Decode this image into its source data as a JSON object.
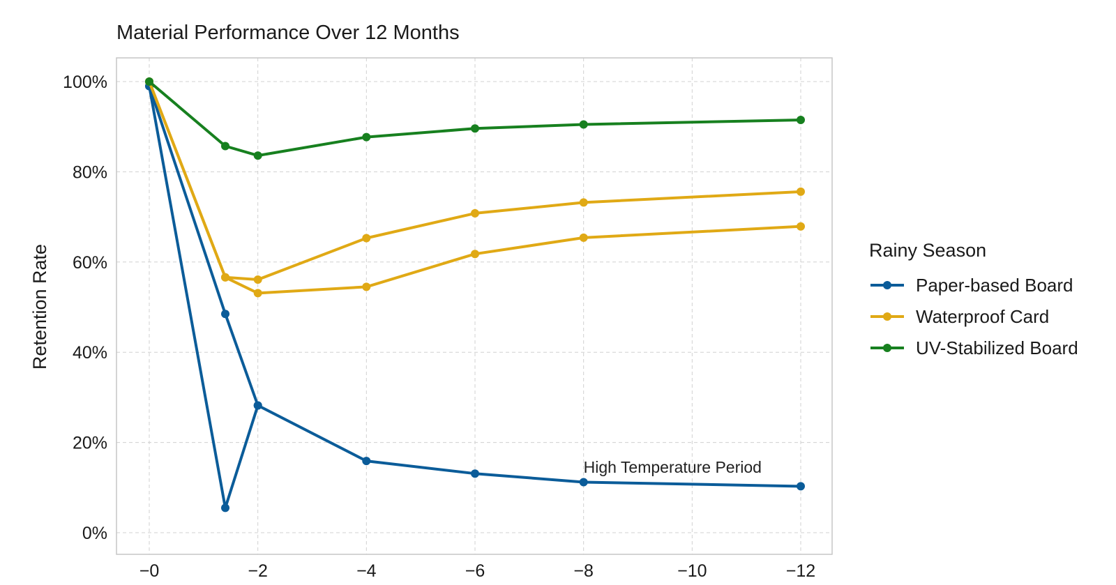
{
  "chart_data": {
    "type": "line",
    "title": "Material Performance Over 12 Months",
    "xlabel": "",
    "ylabel": "Retention Rate",
    "xlim": [
      0,
      12
    ],
    "ylim": [
      0,
      100
    ],
    "x_ticks": [
      {
        "value": 0,
        "label": "−0"
      },
      {
        "value": 2,
        "label": "−2"
      },
      {
        "value": 4,
        "label": "−4"
      },
      {
        "value": 6,
        "label": "−6"
      },
      {
        "value": 8,
        "label": "−8"
      },
      {
        "value": 10,
        "label": "−10"
      },
      {
        "value": 12,
        "label": "−12"
      }
    ],
    "y_ticks": [
      {
        "value": 0,
        "label": "0%"
      },
      {
        "value": 20,
        "label": "20%"
      },
      {
        "value": 40,
        "label": "40%"
      },
      {
        "value": 60,
        "label": "60%"
      },
      {
        "value": 80,
        "label": "80%"
      },
      {
        "value": 100,
        "label": "100%"
      }
    ],
    "grid": true,
    "legend": {
      "title": "Rainy Season",
      "placement": "right"
    },
    "series": [
      {
        "name": "Paper-based Board",
        "color": "#0b5c99",
        "in_legend": true,
        "points": [
          [
            0,
            99
          ],
          [
            1.4,
            48.5
          ],
          [
            2,
            28.2
          ],
          [
            4,
            15.9
          ],
          [
            6,
            13.1
          ],
          [
            8,
            11.2
          ],
          [
            12,
            10.3
          ]
        ]
      },
      {
        "name": "Paper-based Board",
        "color": "#0b5c99",
        "in_legend": false,
        "points": [
          [
            0,
            99
          ],
          [
            1.4,
            5.5
          ],
          [
            2,
            28.2
          ]
        ]
      },
      {
        "name": "Waterproof Card",
        "color": "#e0a915",
        "in_legend": true,
        "points": [
          [
            0,
            100
          ],
          [
            1.4,
            56.6
          ],
          [
            2,
            56.1
          ],
          [
            4,
            65.3
          ],
          [
            6,
            70.8
          ],
          [
            8,
            73.2
          ],
          [
            12,
            75.6
          ]
        ]
      },
      {
        "name": "Waterproof Card",
        "color": "#e0a915",
        "in_legend": false,
        "points": [
          [
            0,
            100
          ],
          [
            1.4,
            56.6
          ],
          [
            2,
            53.1
          ],
          [
            4,
            54.5
          ],
          [
            6,
            61.8
          ],
          [
            8,
            65.4
          ],
          [
            12,
            67.9
          ]
        ]
      },
      {
        "name": "UV-Stabilized Board",
        "color": "#17801f",
        "in_legend": true,
        "points": [
          [
            0,
            100
          ],
          [
            1.4,
            85.7
          ],
          [
            2,
            83.6
          ],
          [
            4,
            87.7
          ],
          [
            6,
            89.6
          ],
          [
            8,
            90.5
          ],
          [
            12,
            91.5
          ]
        ]
      }
    ],
    "annotations": [
      {
        "text": "High Temperature Period",
        "x": 8,
        "y": 13.3
      }
    ]
  }
}
